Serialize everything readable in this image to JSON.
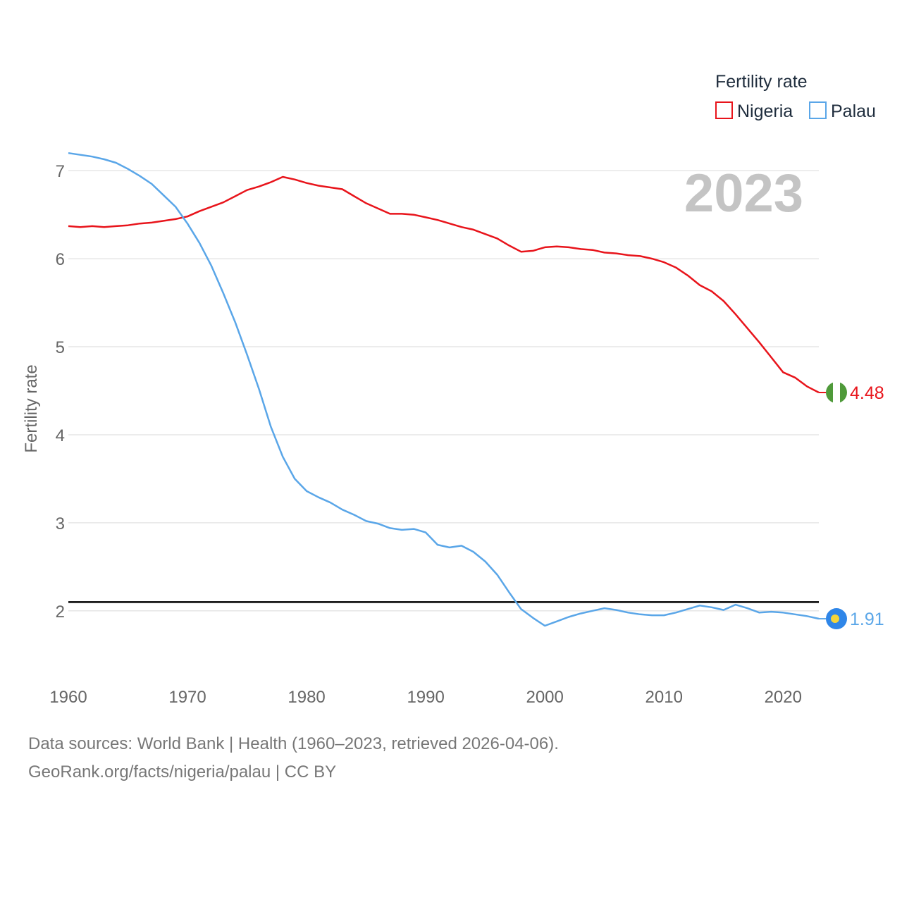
{
  "chart_data": {
    "type": "line",
    "title": "",
    "watermark_year": "2023",
    "xlabel": "",
    "ylabel": "Fertility rate",
    "xlim": [
      1960,
      2023
    ],
    "ylim": [
      1.35,
      7.25
    ],
    "x_ticks": [
      1960,
      1970,
      1980,
      1990,
      2000,
      2010,
      2020
    ],
    "y_ticks": [
      2,
      3,
      4,
      5,
      6,
      7
    ],
    "grid": true,
    "legend": {
      "title": "Fertility rate",
      "position": "top-right"
    },
    "reference_line": {
      "value": 2.1,
      "color": "#000000"
    },
    "series": [
      {
        "name": "Nigeria",
        "color": "#e8141b",
        "end_label": "4.48",
        "flag": "nigeria-flag",
        "x": [
          1960,
          1961,
          1962,
          1963,
          1964,
          1965,
          1966,
          1967,
          1968,
          1969,
          1970,
          1971,
          1972,
          1973,
          1974,
          1975,
          1976,
          1977,
          1978,
          1979,
          1980,
          1981,
          1982,
          1983,
          1984,
          1985,
          1986,
          1987,
          1988,
          1989,
          1990,
          1991,
          1992,
          1993,
          1994,
          1995,
          1996,
          1997,
          1998,
          1999,
          2000,
          2001,
          2002,
          2003,
          2004,
          2005,
          2006,
          2007,
          2008,
          2009,
          2010,
          2011,
          2012,
          2013,
          2014,
          2015,
          2016,
          2017,
          2018,
          2019,
          2020,
          2021,
          2022,
          2023
        ],
        "values": [
          6.37,
          6.36,
          6.37,
          6.36,
          6.37,
          6.38,
          6.4,
          6.41,
          6.43,
          6.45,
          6.48,
          6.54,
          6.59,
          6.64,
          6.71,
          6.78,
          6.82,
          6.87,
          6.93,
          6.9,
          6.86,
          6.83,
          6.81,
          6.79,
          6.71,
          6.63,
          6.57,
          6.51,
          6.51,
          6.5,
          6.47,
          6.44,
          6.4,
          6.36,
          6.33,
          6.28,
          6.23,
          6.15,
          6.08,
          6.09,
          6.13,
          6.14,
          6.13,
          6.11,
          6.1,
          6.07,
          6.06,
          6.04,
          6.03,
          6.0,
          5.96,
          5.9,
          5.81,
          5.7,
          5.63,
          5.52,
          5.37,
          5.21,
          5.05,
          4.88,
          4.71,
          4.65,
          4.55,
          4.48
        ]
      },
      {
        "name": "Palau",
        "color": "#5aa6e8",
        "end_label": "1.91",
        "flag": "palau-flag",
        "x": [
          1960,
          1961,
          1962,
          1963,
          1964,
          1965,
          1966,
          1967,
          1968,
          1969,
          1970,
          1971,
          1972,
          1973,
          1974,
          1975,
          1976,
          1977,
          1978,
          1979,
          1980,
          1981,
          1982,
          1983,
          1984,
          1985,
          1986,
          1987,
          1988,
          1989,
          1990,
          1991,
          1992,
          1993,
          1994,
          1995,
          1996,
          1997,
          1998,
          1999,
          2000,
          2001,
          2002,
          2003,
          2004,
          2005,
          2006,
          2007,
          2008,
          2009,
          2010,
          2011,
          2012,
          2013,
          2014,
          2015,
          2016,
          2017,
          2018,
          2019,
          2020,
          2021,
          2022,
          2023
        ],
        "values": [
          7.2,
          7.18,
          7.16,
          7.13,
          7.09,
          7.02,
          6.94,
          6.85,
          6.72,
          6.59,
          6.4,
          6.18,
          5.92,
          5.61,
          5.28,
          4.91,
          4.52,
          4.09,
          3.75,
          3.5,
          3.36,
          3.29,
          3.23,
          3.15,
          3.09,
          3.02,
          2.99,
          2.94,
          2.92,
          2.93,
          2.89,
          2.75,
          2.72,
          2.74,
          2.67,
          2.56,
          2.41,
          2.21,
          2.02,
          1.92,
          1.83,
          1.88,
          1.93,
          1.97,
          2.0,
          2.03,
          2.01,
          1.98,
          1.96,
          1.95,
          1.95,
          1.98,
          2.02,
          2.06,
          2.04,
          2.01,
          2.07,
          2.03,
          1.98,
          1.99,
          1.98,
          1.96,
          1.94,
          1.91
        ]
      }
    ]
  },
  "footer": {
    "line1": "Data sources: World Bank | Health (1960–2023, retrieved 2026-04-06).",
    "line2": "GeoRank.org/facts/nigeria/palau | CC BY"
  }
}
